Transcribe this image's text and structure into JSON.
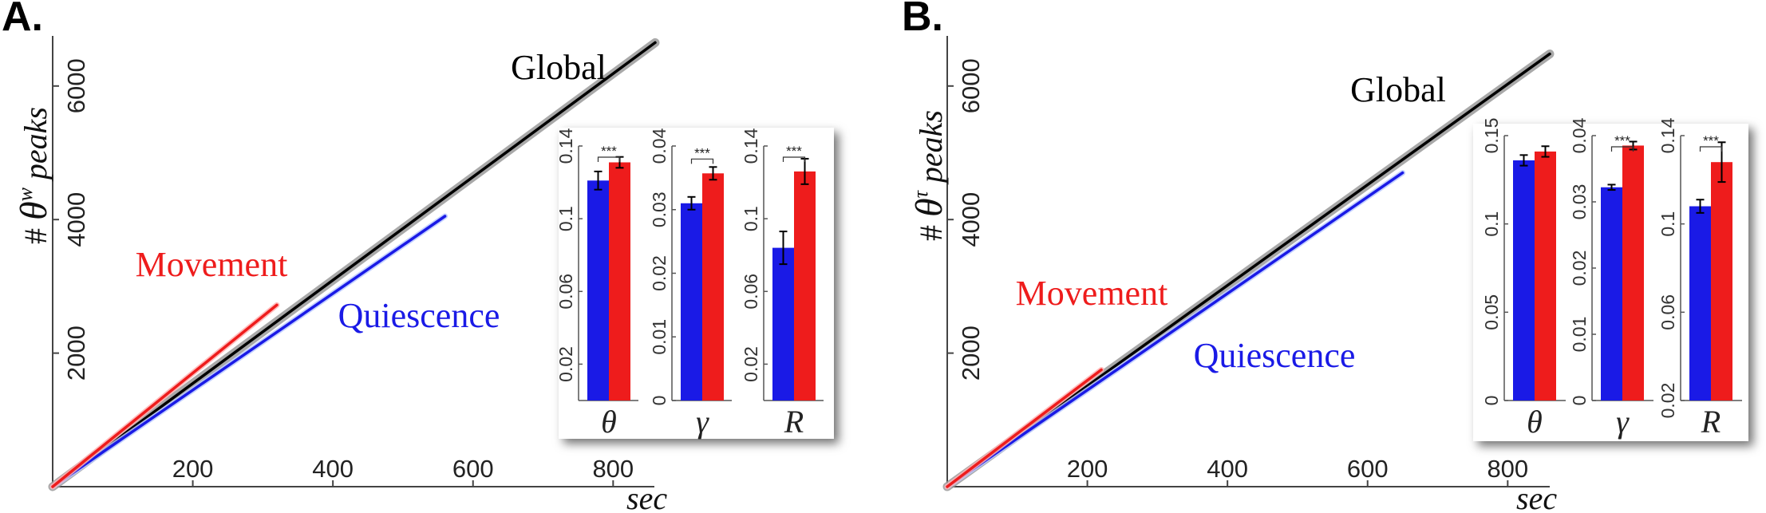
{
  "panels": [
    {
      "letter": "A.",
      "ylabel_prefix": "# ",
      "ylabel_symbol": "θ",
      "ylabel_superscript": "w",
      "ylabel_suffix": " peaks",
      "xlabel": "sec",
      "series_labels": {
        "global": "Global",
        "movement": "Movement",
        "quiescence": "Quiescence"
      }
    },
    {
      "letter": "B.",
      "ylabel_prefix": "# ",
      "ylabel_symbol": "θ",
      "ylabel_superscript": "τ",
      "ylabel_suffix": " peaks",
      "xlabel": "sec",
      "series_labels": {
        "global": "Global",
        "movement": "Movement",
        "quiescence": "Quiescence"
      }
    }
  ],
  "chart_data": [
    {
      "panel": "A.",
      "type": "line",
      "xlabel": "sec",
      "ylabel": "# θ^w peaks",
      "xlim": [
        0,
        860
      ],
      "ylim": [
        0,
        6800
      ],
      "xticks": [
        200,
        400,
        600,
        800
      ],
      "yticks": [
        2000,
        4000,
        6000
      ],
      "colors": {
        "global": "#000000",
        "movement": "#ee1c1c",
        "quiescence": "#1a1ae6"
      },
      "series": [
        {
          "name": "Global",
          "x": [
            0,
            860
          ],
          "y": [
            0,
            6650
          ]
        },
        {
          "name": "Movement",
          "x": [
            0,
            320
          ],
          "y": [
            0,
            2720
          ]
        },
        {
          "name": "Quiescence",
          "x": [
            0,
            560
          ],
          "y": [
            0,
            4050
          ]
        }
      ],
      "insets": [
        {
          "type": "bar",
          "xlabel": "θ",
          "ylim": [
            0,
            0.14
          ],
          "yticks": [
            0.02,
            0.06,
            0.1,
            0.14
          ],
          "values": [
            0.121,
            0.131
          ],
          "errors": [
            0.005,
            0.003
          ],
          "significance": "***"
        },
        {
          "type": "bar",
          "xlabel": "γ",
          "ylim": [
            0,
            0.04
          ],
          "yticks": [
            0,
            0.01,
            0.02,
            0.03,
            0.04
          ],
          "values": [
            0.031,
            0.0357
          ],
          "errors": [
            0.001,
            0.001
          ],
          "significance": "***"
        },
        {
          "type": "bar",
          "xlabel": "R",
          "ylim": [
            0,
            0.14
          ],
          "yticks": [
            0.02,
            0.06,
            0.1,
            0.14
          ],
          "values": [
            0.084,
            0.126
          ],
          "errors": [
            0.009,
            0.007
          ],
          "significance": "***"
        }
      ]
    },
    {
      "panel": "B.",
      "type": "line",
      "xlabel": "sec",
      "ylabel": "# θ^τ peaks",
      "xlim": [
        0,
        860
      ],
      "ylim": [
        0,
        6800
      ],
      "xticks": [
        200,
        400,
        600,
        800
      ],
      "yticks": [
        2000,
        4000,
        6000
      ],
      "colors": {
        "global": "#000000",
        "movement": "#ee1c1c",
        "quiescence": "#1a1ae6"
      },
      "series": [
        {
          "name": "Global",
          "x": [
            0,
            860
          ],
          "y": [
            0,
            6480
          ]
        },
        {
          "name": "Movement",
          "x": [
            0,
            220
          ],
          "y": [
            0,
            1750
          ]
        },
        {
          "name": "Quiescence",
          "x": [
            0,
            650
          ],
          "y": [
            0,
            4700
          ]
        }
      ],
      "insets": [
        {
          "type": "bar",
          "xlabel": "θ",
          "ylim": [
            0,
            0.15
          ],
          "yticks": [
            0,
            0.05,
            0.1,
            0.15
          ],
          "values": [
            0.136,
            0.141
          ],
          "errors": [
            0.003,
            0.003
          ],
          "significance": ""
        },
        {
          "type": "bar",
          "xlabel": "γ",
          "ylim": [
            0,
            0.04
          ],
          "yticks": [
            0,
            0.01,
            0.02,
            0.03,
            0.04
          ],
          "values": [
            0.0322,
            0.0385
          ],
          "errors": [
            0.0004,
            0.0006
          ],
          "significance": "***"
        },
        {
          "type": "bar",
          "xlabel": "R",
          "ylim": [
            0.02,
            0.14
          ],
          "yticks": [
            0.02,
            0.06,
            0.1,
            0.14
          ],
          "values": [
            0.108,
            0.128
          ],
          "errors": [
            0.003,
            0.009
          ],
          "significance": "***"
        }
      ]
    }
  ]
}
